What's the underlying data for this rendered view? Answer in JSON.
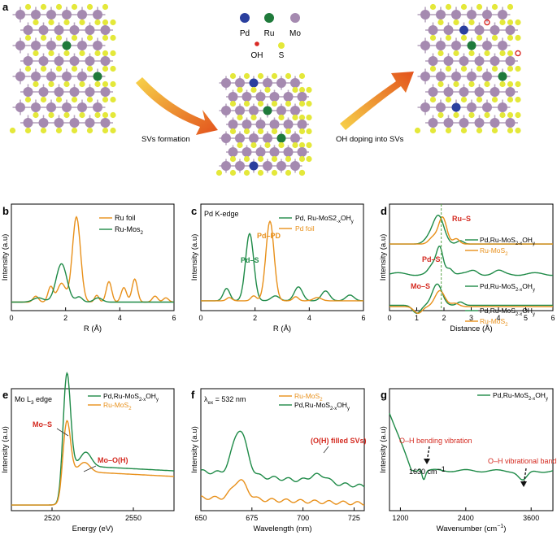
{
  "colors": {
    "orange": "#e8901a",
    "green": "#1e8a47",
    "red": "#d42a20",
    "mo": "#a58ab0",
    "s": "#e4e83a",
    "pd": "#2a3f9e",
    "ru": "#1f7a3b",
    "oh": "#d92a25",
    "arrow_from": "#f7d34a",
    "arrow_to": "#e3521c"
  },
  "panel_a": {
    "label": "a",
    "legend": {
      "pd": "Pd",
      "ru": "Ru",
      "mo": "Mo",
      "oh": "OH",
      "s": "S"
    },
    "step1": "SVs formation",
    "step2": "OH doping into SVs"
  },
  "chart_data": [
    {
      "panel": "b",
      "type": "line",
      "xlabel": "R (Å)",
      "ylabel": "Intensity (a.u)",
      "xlim": [
        0,
        6
      ],
      "xticks": [
        "0",
        "2",
        "4",
        "6"
      ],
      "ticks": [
        0,
        2,
        4,
        6
      ],
      "ylim": [
        0,
        1.25
      ],
      "series": [
        {
          "name": "Ru foil",
          "color": "orange",
          "peaks": [
            [
              0.9,
              0.07,
              0.1
            ],
            [
              1.45,
              0.18,
              0.1
            ],
            [
              1.85,
              0.22,
              0.15
            ],
            [
              2.4,
              1.0,
              0.15
            ],
            [
              3.15,
              0.08,
              0.08
            ],
            [
              3.6,
              0.24,
              0.1
            ],
            [
              4.15,
              0.17,
              0.1
            ],
            [
              4.55,
              0.27,
              0.1
            ],
            [
              5.3,
              0.07,
              0.1
            ],
            [
              5.7,
              0.05,
              0.1
            ]
          ]
        },
        {
          "name": "Ru-Mos2",
          "color": "green",
          "peaks": [
            [
              1.0,
              0.05,
              0.2
            ],
            [
              1.85,
              0.45,
              0.2
            ],
            [
              2.5,
              0.06,
              0.12
            ],
            [
              3.2,
              0.05,
              0.15
            ]
          ]
        }
      ],
      "legend": [
        "Ru foil",
        "Ru-Mos",
        "2"
      ]
    },
    {
      "panel": "c",
      "type": "line",
      "title": "Pd K-edge",
      "xlabel": "R (Å)",
      "ylabel": "Intensity (a.u)",
      "xlim": [
        0,
        6
      ],
      "xticks": [
        "0",
        "2",
        "4",
        "6"
      ],
      "ticks": [
        0,
        2,
        4,
        6
      ],
      "ylim": [
        0,
        1.3
      ],
      "series": [
        {
          "name": "Pd, Ru-MoS2-xOHy",
          "color": "green",
          "peaks": [
            [
              0.95,
              0.15,
              0.12
            ],
            [
              1.8,
              0.82,
              0.15
            ],
            [
              2.75,
              0.06,
              0.15
            ],
            [
              3.6,
              0.17,
              0.15
            ],
            [
              4.6,
              0.12,
              0.15
            ],
            [
              5.5,
              0.07,
              0.15
            ]
          ]
        },
        {
          "name": "Pd foil",
          "color": "orange",
          "peaks": [
            [
              1.05,
              0.04,
              0.1
            ],
            [
              1.95,
              0.06,
              0.1
            ],
            [
              2.55,
              0.97,
              0.15
            ],
            [
              3.5,
              0.05,
              0.1
            ],
            [
              4.3,
              0.04,
              0.15
            ]
          ]
        }
      ],
      "legend": [
        "Pd, Ru-MoS2",
        "-x",
        "OH",
        "y",
        "Pd foil"
      ],
      "annotations": [
        "Pd–S",
        "Pd–PD"
      ]
    },
    {
      "panel": "d",
      "type": "line",
      "xlabel": "Distance (Å)",
      "ylabel": "Intensity (a.u)",
      "xlim": [
        0,
        6
      ],
      "xticks": [
        "0",
        "1",
        "2",
        "3",
        "4",
        "5",
        "6"
      ],
      "ticks": [
        0,
        1,
        2,
        3,
        4,
        5,
        6
      ],
      "ylim": [
        0,
        1.6
      ],
      "reference_line_x": 1.9,
      "series": [
        {
          "name": "Pd,Ru-MoS2-xOHy (top)",
          "color": "green",
          "offset": 1.0,
          "peaks": [
            [
              1.45,
              0.08,
              0.18
            ],
            [
              1.8,
              0.42,
              0.2
            ],
            [
              2.6,
              0.05,
              0.12
            ]
          ]
        },
        {
          "name": "Ru-MoS2 (top)",
          "color": "orange",
          "offset": 1.0,
          "peaks": [
            [
              1.6,
              0.1,
              0.15
            ],
            [
              1.95,
              0.4,
              0.15
            ],
            [
              2.45,
              0.08,
              0.12
            ]
          ]
        },
        {
          "name": "Pd,Ru-MoS2-xOHy (middle)",
          "color": "green",
          "offset": 0.55,
          "peaks": [
            [
              1.6,
              0.12,
              0.15
            ],
            [
              1.85,
              0.38,
              0.12
            ],
            [
              2.2,
              0.1,
              0.12
            ],
            [
              3.1,
              0.05,
              0.15
            ],
            [
              4.0,
              0.04,
              0.15
            ]
          ]
        },
        {
          "name": "Pd,Ru-MoS2-xOHy (bottom)",
          "color": "green",
          "offset": 0.08,
          "peaks": [
            [
              1.0,
              -0.12,
              0.15
            ],
            [
              1.75,
              0.32,
              0.18
            ],
            [
              2.6,
              0.05,
              0.12
            ]
          ]
        },
        {
          "name": "Ru-MoS2 (bottom)",
          "color": "orange",
          "offset": 0.06,
          "peaks": [
            [
              1.05,
              -0.1,
              0.15
            ],
            [
              1.85,
              0.24,
              0.18
            ],
            [
              2.4,
              0.05,
              0.15
            ]
          ]
        }
      ],
      "legend": [
        "Pd,Ru-MoS",
        "2-x",
        "OH",
        "y",
        "Ru-MoS",
        "2"
      ],
      "annotations": [
        "Ru–S",
        "Pd–S",
        "Mo–S"
      ]
    },
    {
      "panel": "e",
      "type": "line",
      "title": "Mo L",
      "title_sub": "3",
      "title_rest": " edge",
      "xlabel": "Energy (eV)",
      "ylabel": "Intensity (a.u)",
      "xlim": [
        2505,
        2565
      ],
      "xticks": [
        "2520",
        "2550"
      ],
      "ticks": [
        2520,
        2550
      ],
      "ylim": [
        0,
        1.3
      ],
      "series": [
        {
          "name": "Pd,Ru-MoS2-xOHy",
          "color": "green",
          "edge": [
            2523.5,
            0.42
          ],
          "peak": [
            2525.5,
            1.0,
            1.3
          ],
          "shoulder": [
            2532.5,
            0.15,
            2.0
          ]
        },
        {
          "name": "Ru-MoS2",
          "color": "orange",
          "edge": [
            2523.5,
            0.36
          ],
          "peak": [
            2525.5,
            0.55,
            1.3
          ],
          "shoulder": [
            2532.0,
            0.1,
            2.0
          ]
        }
      ],
      "legend": [
        "Pd,Ru-MoS",
        "2-x",
        "OH",
        "y",
        "Ru-MoS",
        "2"
      ],
      "annotations": [
        "Mo–S",
        "Mo–O(H)"
      ]
    },
    {
      "panel": "f",
      "type": "line",
      "title": "λ",
      "title_sub": "ex",
      "title_rest": " = 532 nm",
      "xlabel": "Wavelength (nm)",
      "ylabel": "Intensity (a.u)",
      "xlim": [
        650,
        730
      ],
      "xticks": [
        "650",
        "675",
        "700",
        "725"
      ],
      "ticks": [
        650,
        675,
        700,
        725
      ],
      "ylim": [
        0,
        1.3
      ],
      "series": [
        {
          "name": "Pd,Ru-MoS2-xOHy",
          "color": "green",
          "base": 0.42,
          "slope": -0.002,
          "peaks": [
            [
              669,
              0.48,
              3.5
            ],
            [
              706,
              0.07,
              3
            ],
            [
              711,
              0.05,
              2
            ]
          ]
        },
        {
          "name": "Ru-MoS2",
          "color": "orange",
          "base": 0.14,
          "slope": -0.0008,
          "peaks": [
            [
              669,
              0.2,
              3.5
            ]
          ]
        }
      ],
      "legend": [
        "Ru-MoS",
        "2",
        "Pd,Ru-MoS",
        "2-x",
        "OH",
        "y"
      ],
      "annotations": [
        "(O(H) filled SVs)"
      ]
    },
    {
      "panel": "g",
      "type": "line",
      "xlabel": "Wavenumber (cm",
      "xlabel_sup": "−1",
      "xlabel_end": ")",
      "ylabel": "Intensity (a.u)",
      "xlim": [
        1000,
        4000
      ],
      "xticks": [
        "1200",
        "2400",
        "3600"
      ],
      "ticks": [
        1200,
        2400,
        3600
      ],
      "ylim": [
        0,
        1.3
      ],
      "series": [
        {
          "name": "Pd,Ru-MoS2-xOHy",
          "color": "green"
        }
      ],
      "legend": [
        "Pd,Ru-MoS",
        "2-x",
        "OH",
        "y"
      ],
      "annotations": [
        "O–H bending vibration",
        "1630 cm",
        "−1",
        "O–H vibrational band"
      ]
    }
  ],
  "panel_labels": [
    "b",
    "c",
    "d",
    "e",
    "f",
    "g"
  ]
}
